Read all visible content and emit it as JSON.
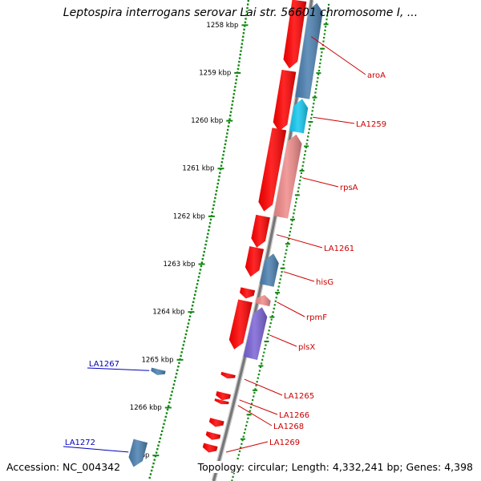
{
  "title": "Leptospira interrogans serovar Lai str. 56601 chromosome I, ...",
  "footer": {
    "accession": "Accession: NC_004342",
    "topology": "Topology: circular; Length: 4,332,241 bp; Genes: 4,398"
  },
  "colors": {
    "ruler_dots": "#118811",
    "axis": "#777777",
    "gene_red": "#ff0000",
    "gene_light_red": "#f08a8a",
    "gene_blue": "#4a7fb0",
    "gene_cyan": "#14c8f0",
    "gene_purple": "#7a63d6",
    "label_red": "#cc0000",
    "label_blue": "#0000bb",
    "tick_green": "#118811"
  },
  "ruler": {
    "unit": "kbp",
    "ticks": [
      {
        "pos": 1258,
        "label": "1258 kbp"
      },
      {
        "pos": 1259,
        "label": "1259 kbp"
      },
      {
        "pos": 1260,
        "label": "1260 kbp"
      },
      {
        "pos": 1261,
        "label": "1261 kbp"
      },
      {
        "pos": 1262,
        "label": "1262 kbp"
      },
      {
        "pos": 1263,
        "label": "1263 kbp"
      },
      {
        "pos": 1264,
        "label": "1264 kbp"
      },
      {
        "pos": 1265,
        "label": "1265 kbp"
      },
      {
        "pos": 1266,
        "label": "1266 kbp"
      },
      {
        "pos": 1267,
        "label": "kbp"
      }
    ]
  },
  "genes": [
    {
      "name": "aroA",
      "color": "gene_red",
      "lane": "inner",
      "strand": "reverse",
      "start": 1257.35,
      "end": 1258.75
    },
    {
      "name": "",
      "color": "gene_red",
      "lane": "inner",
      "strand": "reverse",
      "start": 1258.8,
      "end": 1260.05
    },
    {
      "name": "",
      "color": "gene_blue",
      "lane": "outer",
      "strand": "forward",
      "start": 1257.35,
      "end": 1259.3
    },
    {
      "name": "LA1259",
      "color": "gene_cyan",
      "lane": "outer",
      "strand": "forward",
      "start": 1259.32,
      "end": 1260.0
    },
    {
      "name": "",
      "color": "gene_red",
      "lane": "inner",
      "strand": "reverse",
      "start": 1260.0,
      "end": 1261.7
    },
    {
      "name": "rpsA",
      "color": "gene_light_red",
      "lane": "outer",
      "strand": "forward",
      "start": 1260.05,
      "end": 1261.75
    },
    {
      "name": "LA1261",
      "color": "gene_red",
      "lane": "inner",
      "strand": "reverse",
      "start": 1261.8,
      "end": 1262.45
    },
    {
      "name": "",
      "color": "gene_red",
      "lane": "inner",
      "strand": "reverse",
      "start": 1262.45,
      "end": 1263.05
    },
    {
      "name": "hisG",
      "color": "gene_blue",
      "lane": "outer",
      "strand": "forward",
      "start": 1262.5,
      "end": 1263.15
    },
    {
      "name": "",
      "color": "gene_red",
      "lane": "inner",
      "strand": "reverse",
      "start": 1263.3,
      "end": 1263.5
    },
    {
      "name": "rpmF",
      "color": "gene_light_red",
      "lane": "outer",
      "strand": "forward",
      "start": 1263.35,
      "end": 1263.55
    },
    {
      "name": "",
      "color": "gene_red",
      "lane": "inner",
      "strand": "reverse",
      "start": 1263.55,
      "end": 1264.55
    },
    {
      "name": "plsX",
      "color": "gene_purple",
      "lane": "outer",
      "strand": "forward",
      "start": 1263.6,
      "end": 1264.65
    },
    {
      "name": "LA1265",
      "color": "gene_red",
      "lane": "inner",
      "strand": "reverse",
      "start": 1265.05,
      "end": 1265.15
    },
    {
      "name": "LA1266",
      "color": "gene_red",
      "lane": "inner",
      "strand": "reverse",
      "start": 1265.45,
      "end": 1265.6
    },
    {
      "name": "LA1268",
      "color": "gene_red",
      "lane": "inner",
      "strand": "reverse",
      "start": 1265.6,
      "end": 1265.68
    },
    {
      "name": "",
      "color": "gene_red",
      "lane": "inner",
      "strand": "reverse",
      "start": 1266.0,
      "end": 1266.15
    },
    {
      "name": "",
      "color": "gene_red",
      "lane": "inner",
      "strand": "reverse",
      "start": 1266.28,
      "end": 1266.42
    },
    {
      "name": "LA1269",
      "color": "gene_red",
      "lane": "inner",
      "strand": "reverse",
      "start": 1266.52,
      "end": 1266.68
    },
    {
      "name": "LA1267",
      "color": "gene_blue",
      "lane": "far_inner",
      "strand": "reverse",
      "start": 1265.3,
      "end": 1265.42
    },
    {
      "name": "LA1272",
      "color": "gene_blue",
      "lane": "far_inner",
      "strand": "reverse",
      "start": 1266.8,
      "end": 1267.35
    }
  ],
  "labels": [
    {
      "text": "aroA",
      "gene": "aroA",
      "side": "right"
    },
    {
      "text": "LA1259",
      "gene": "LA1259",
      "side": "right"
    },
    {
      "text": "rpsA",
      "gene": "rpsA",
      "side": "right"
    },
    {
      "text": "LA1261",
      "gene": "LA1261",
      "side": "right"
    },
    {
      "text": "hisG",
      "gene": "hisG",
      "side": "right"
    },
    {
      "text": "rpmF",
      "gene": "rpmF",
      "side": "right"
    },
    {
      "text": "plsX",
      "gene": "plsX",
      "side": "right"
    },
    {
      "text": "LA1265",
      "gene": "LA1265",
      "side": "right"
    },
    {
      "text": "LA1266",
      "gene": "LA1266",
      "side": "right"
    },
    {
      "text": "LA1268",
      "gene": "LA1268",
      "side": "right"
    },
    {
      "text": "LA1269",
      "gene": "LA1269",
      "side": "right"
    },
    {
      "text": "LA1267",
      "gene": "LA1267",
      "side": "left",
      "color": "label_blue"
    },
    {
      "text": "LA1272",
      "gene": "LA1272",
      "side": "left",
      "color": "label_blue"
    }
  ]
}
